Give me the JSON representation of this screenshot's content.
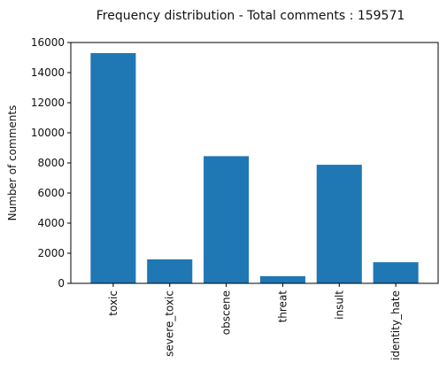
{
  "chart_data": {
    "type": "bar",
    "title": "Frequency distribution - Total comments : 159571",
    "xlabel": "",
    "ylabel": "Number of comments",
    "categories": [
      "toxic",
      "severe_toxic",
      "obscene",
      "threat",
      "insult",
      "identity_hate"
    ],
    "values": [
      15294,
      1595,
      8449,
      478,
      7877,
      1405
    ],
    "ylim": [
      0,
      16000
    ],
    "yticks": [
      0,
      2000,
      4000,
      6000,
      8000,
      10000,
      12000,
      14000,
      16000
    ],
    "bar_color": "#1f77b4",
    "grid": false
  }
}
